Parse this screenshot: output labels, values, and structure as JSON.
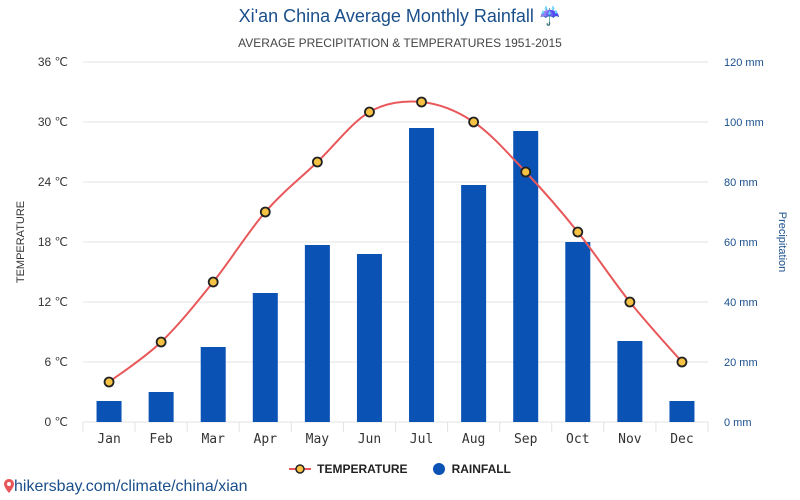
{
  "title": "Xi'an China Average Monthly Rainfall ☔",
  "subtitle": "AVERAGE PRECIPITATION & TEMPERATURES 1951-2015",
  "footer": "hikersbay.com/climate/china/xian",
  "footer_icon": "map-pin-icon",
  "colors": {
    "temperature": "#e8585a",
    "rainfall": "#0a52b4",
    "marker_fill": "#f6c244",
    "title": "#1a4f8b"
  },
  "chart_data": {
    "type": "bar+line",
    "categories": [
      "Jan",
      "Feb",
      "Mar",
      "Apr",
      "May",
      "Jun",
      "Jul",
      "Aug",
      "Sep",
      "Oct",
      "Nov",
      "Dec"
    ],
    "ylabel_left": "TEMPERATURE",
    "ylabel_right": "Precipitation",
    "y_left": {
      "min": 0,
      "max": 36,
      "ticks": [
        "0 ℃",
        "6 ℃",
        "12 ℃",
        "18 ℃",
        "24 ℃",
        "30 ℃",
        "36 ℃"
      ]
    },
    "y_right": {
      "min": 0,
      "max": 120,
      "ticks": [
        "0 mm",
        "20 mm",
        "40 mm",
        "60 mm",
        "80 mm",
        "100 mm",
        "120 mm"
      ]
    },
    "grid": true,
    "legend_position": "bottom",
    "series": [
      {
        "name": "TEMPERATURE",
        "type": "line",
        "axis": "left",
        "values": [
          4,
          8,
          14,
          21,
          26,
          31,
          32,
          30,
          25,
          19,
          12,
          6
        ]
      },
      {
        "name": "RAINFALL",
        "type": "bar",
        "axis": "right",
        "values": [
          7,
          10,
          25,
          43,
          59,
          56,
          98,
          79,
          97,
          60,
          27,
          7
        ]
      }
    ]
  }
}
